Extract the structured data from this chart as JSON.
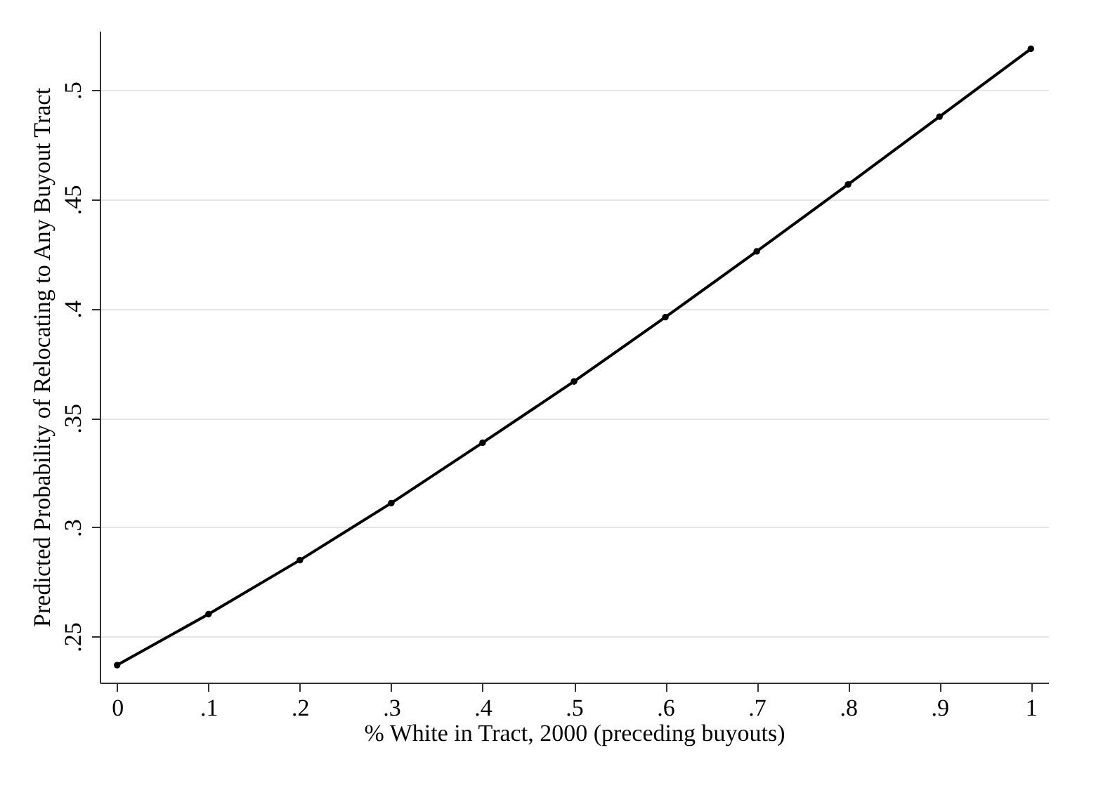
{
  "chart_data": {
    "type": "line",
    "xlabel": "% White in Tract, 2000 (preceding buyouts)",
    "ylabel": "Predicted Probability of Relocating to Any Buyout Tract",
    "x": [
      0,
      0.1,
      0.2,
      0.3,
      0.4,
      0.5,
      0.6,
      0.7,
      0.8,
      0.9,
      1
    ],
    "series": [
      {
        "color": "#000000",
        "values": [
          0.237,
          0.2603,
          0.285,
          0.3111,
          0.3387,
          0.3667,
          0.3961,
          0.4262,
          0.4568,
          0.4878,
          0.5188
        ]
      }
    ],
    "xlim": [
      -0.019,
      1.019
    ],
    "ylim": [
      0.229,
      0.527
    ],
    "xticks": [
      0,
      {
        "value": 0.1,
        "label": ".1"
      },
      {
        "value": 0.2,
        "label": ".2"
      },
      {
        "value": 0.3,
        "label": ".3"
      },
      {
        "value": 0.4,
        "label": ".4"
      },
      {
        "value": 0.5,
        "label": ".5"
      },
      {
        "value": 0.6,
        "label": ".6"
      },
      {
        "value": 0.7,
        "label": ".7"
      },
      {
        "value": 0.8,
        "label": ".8"
      },
      {
        "value": 0.9,
        "label": ".9"
      },
      1
    ],
    "yticks": [
      {
        "value": 0.25,
        "label": ".25"
      },
      {
        "value": 0.3,
        "label": ".3"
      },
      {
        "value": 0.35,
        "label": ".35"
      },
      {
        "value": 0.4,
        "label": ".4"
      },
      {
        "value": 0.45,
        "label": ".45"
      },
      {
        "value": 0.5,
        "label": ".5"
      }
    ],
    "grid": "y",
    "marker": "circle",
    "line_style": "solid"
  }
}
